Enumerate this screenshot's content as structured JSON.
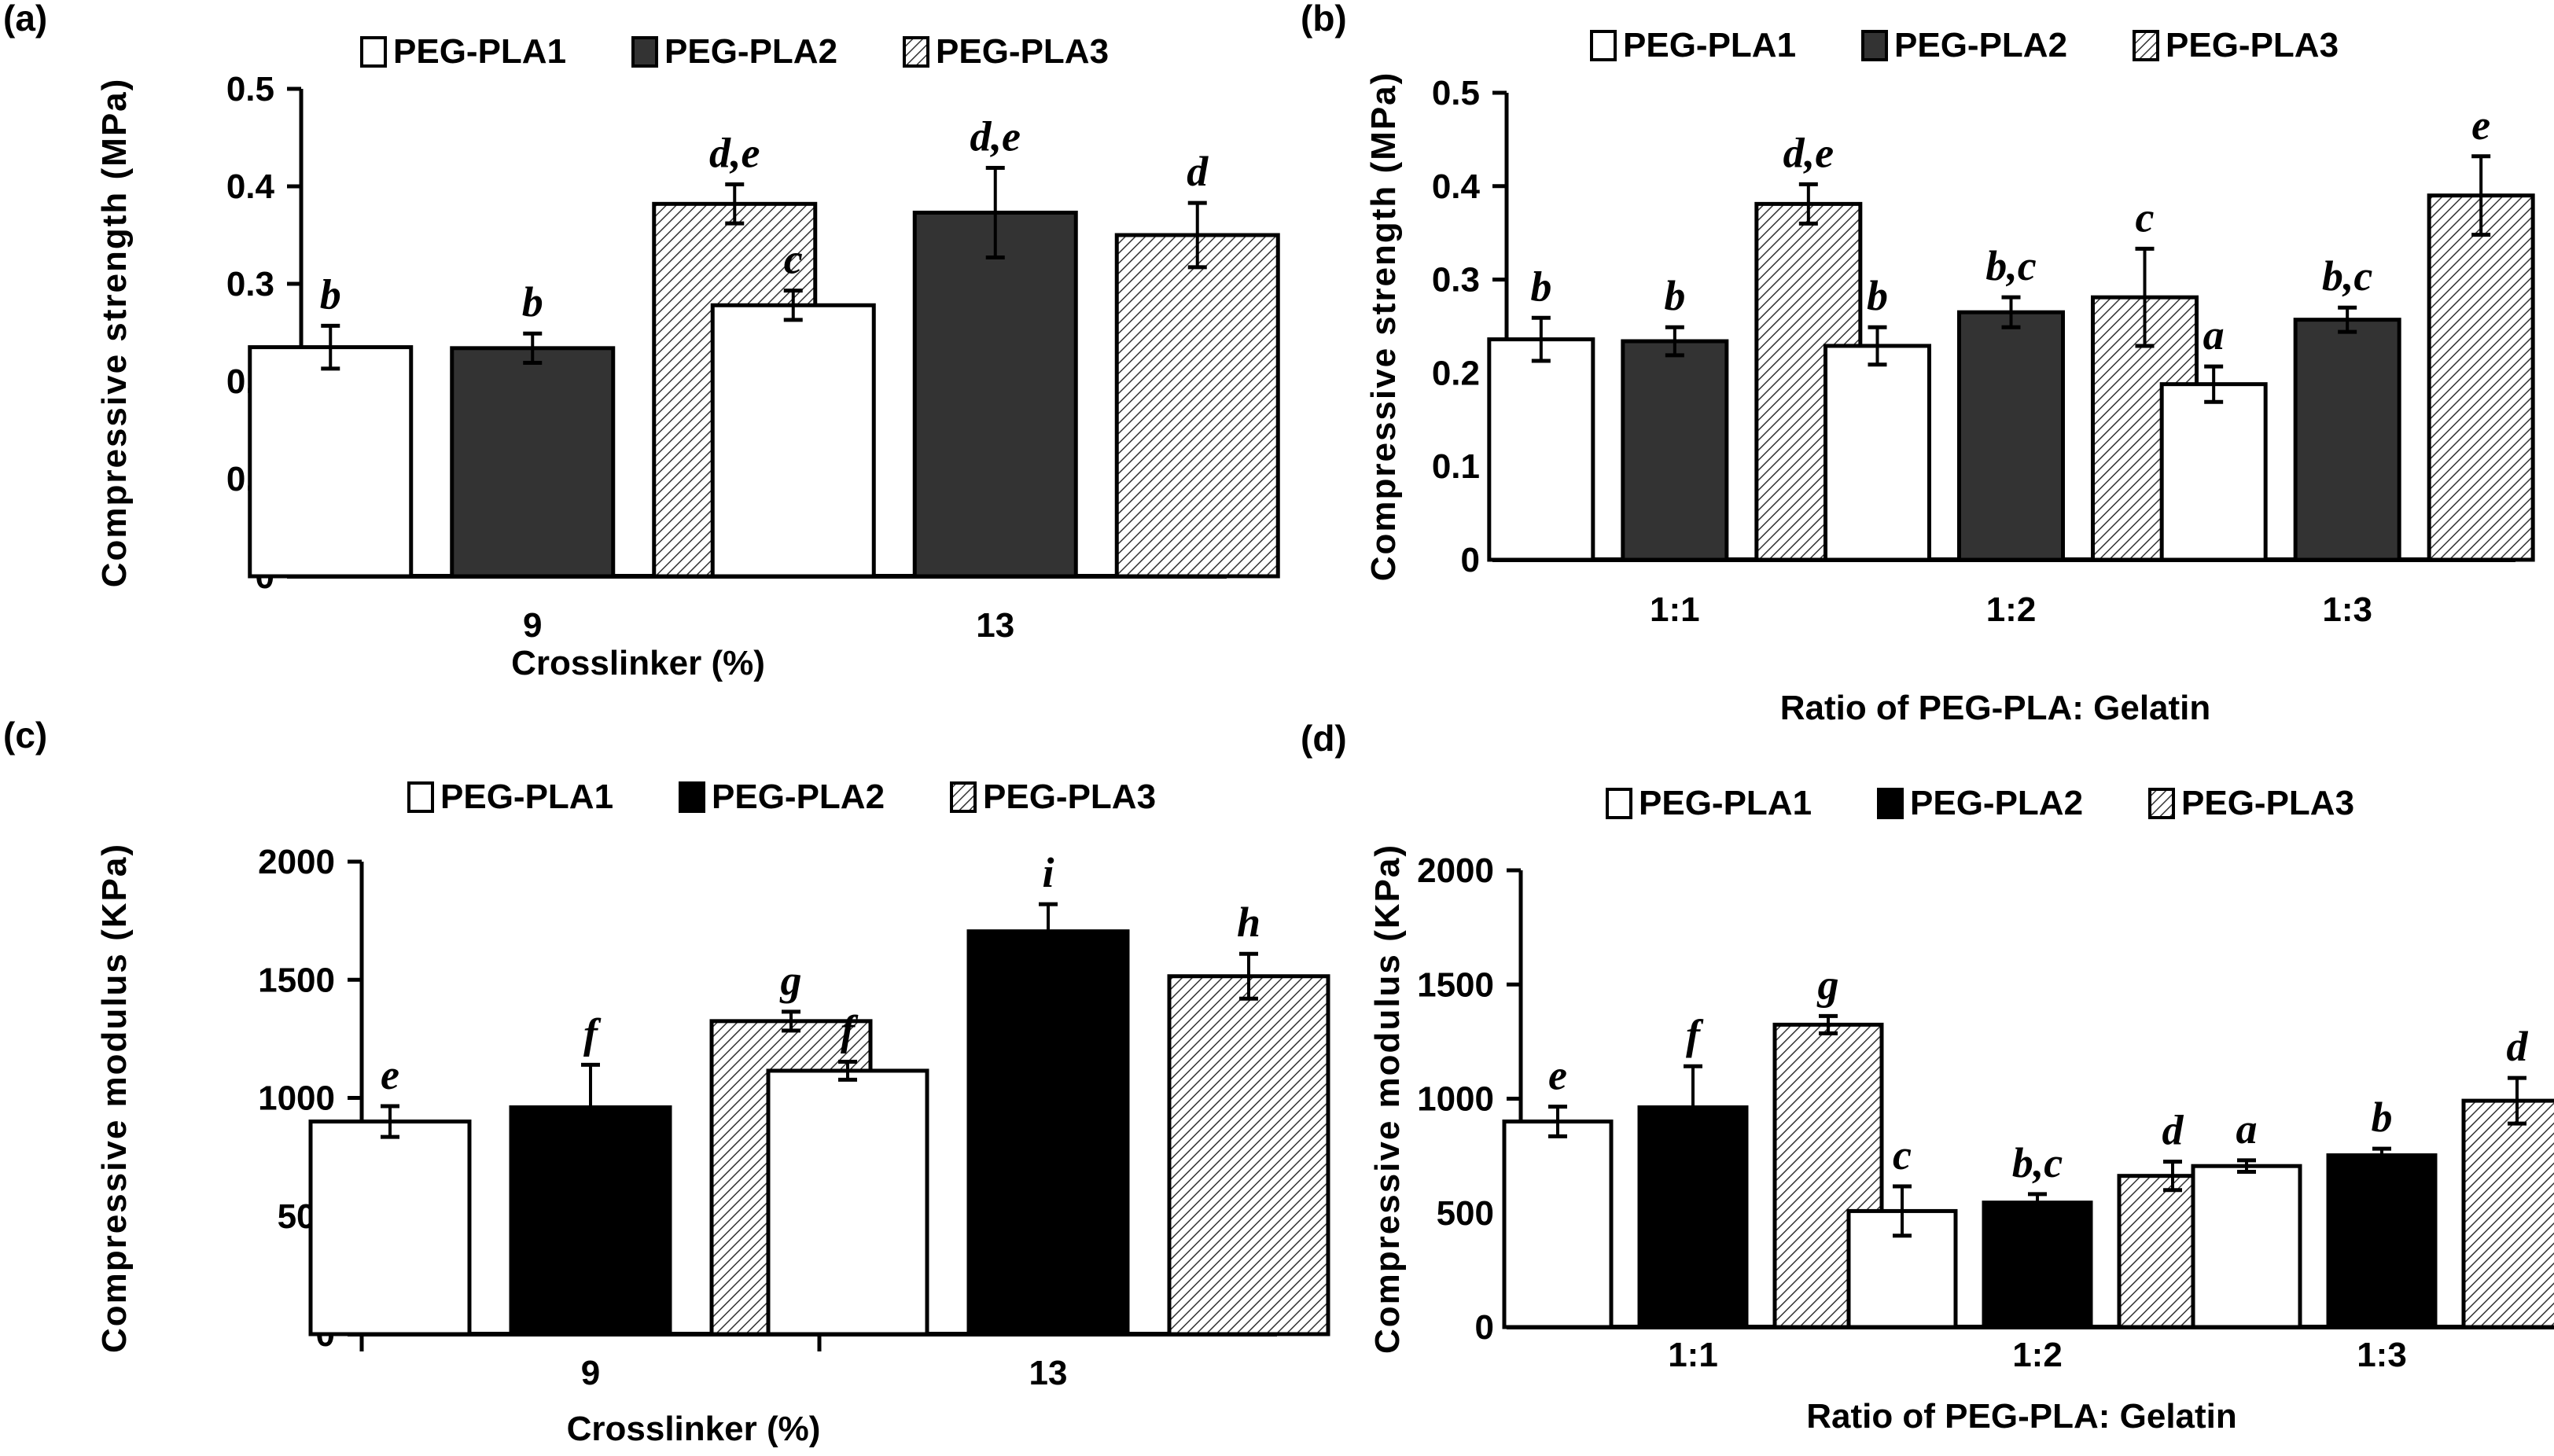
{
  "figure": {
    "panels": [
      {
        "id": "a",
        "label": "(a)"
      },
      {
        "id": "b",
        "label": "(b)"
      },
      {
        "id": "c",
        "label": "(c)"
      },
      {
        "id": "d",
        "label": "(d)"
      }
    ]
  },
  "chart_data": [
    {
      "panel": "(a)",
      "type": "bar",
      "title": "",
      "xlabel": "Crosslinker (%)",
      "ylabel": "Compressive strength (MPa)",
      "ylim": [
        0,
        0.5
      ],
      "yticks": [
        "0",
        "0.1",
        "0.2",
        "0.3",
        "0.4",
        "0.5"
      ],
      "ytick_values": [
        0,
        0.1,
        0.2,
        0.3,
        0.4,
        0.5
      ],
      "categories": [
        "9",
        "13"
      ],
      "legend_position": "top",
      "grid": false,
      "series": [
        {
          "name": "PEG-PLA1",
          "fill": "#ffffff",
          "pattern": "none",
          "values": [
            0.235,
            0.278
          ],
          "error": [
            0.022,
            0.015
          ],
          "letters": [
            "b",
            "c"
          ]
        },
        {
          "name": "PEG-PLA2",
          "fill": "#333333",
          "pattern": "none",
          "values": [
            0.234,
            0.373
          ],
          "error": [
            0.015,
            0.046
          ],
          "letters": [
            "b",
            "d,e"
          ]
        },
        {
          "name": "PEG-PLA3",
          "fill": "#ffffff",
          "pattern": "diagonal-hatch",
          "values": [
            0.382,
            0.35
          ],
          "error": [
            0.02,
            0.033
          ],
          "letters": [
            "d,e",
            "d"
          ]
        }
      ]
    },
    {
      "panel": "(b)",
      "type": "bar",
      "title": "",
      "xlabel": "Ratio of PEG-PLA: Gelatin",
      "ylabel": "Compressive strength (MPa)",
      "ylim": [
        0,
        0.5
      ],
      "yticks": [
        "0",
        "0.1",
        "0.2",
        "0.3",
        "0.4",
        "0.5"
      ],
      "ytick_values": [
        0,
        0.1,
        0.2,
        0.3,
        0.4,
        0.5
      ],
      "categories": [
        "1:1",
        "1:2",
        "1:3"
      ],
      "legend_position": "top",
      "grid": false,
      "series": [
        {
          "name": "PEG-PLA1",
          "fill": "#ffffff",
          "pattern": "none",
          "values": [
            0.236,
            0.229,
            0.188
          ],
          "error": [
            0.023,
            0.02,
            0.019
          ],
          "letters": [
            "b",
            "b",
            "a"
          ]
        },
        {
          "name": "PEG-PLA2",
          "fill": "#333333",
          "pattern": "none",
          "values": [
            0.234,
            0.265,
            0.257
          ],
          "error": [
            0.015,
            0.016,
            0.013
          ],
          "letters": [
            "b",
            "b,c",
            "b,c"
          ]
        },
        {
          "name": "PEG-PLA3",
          "fill": "#ffffff",
          "pattern": "diagonal-hatch",
          "values": [
            0.381,
            0.281,
            0.39
          ],
          "error": [
            0.021,
            0.052,
            0.042
          ],
          "letters": [
            "d,e",
            "c",
            "e"
          ]
        }
      ]
    },
    {
      "panel": "(c)",
      "type": "bar",
      "title": "",
      "xlabel": "Crosslinker (%)",
      "ylabel": "Compressive modulus (KPa)",
      "ylim": [
        0,
        2000
      ],
      "yticks": [
        "0",
        "500",
        "1000",
        "1500",
        "2000"
      ],
      "ytick_values": [
        0,
        500,
        1000,
        1500,
        2000
      ],
      "categories": [
        "9",
        "13"
      ],
      "legend_position": "top",
      "grid": false,
      "series": [
        {
          "name": "PEG-PLA1",
          "fill": "#ffffff",
          "pattern": "none",
          "values": [
            900,
            1115
          ],
          "error": [
            65,
            38
          ],
          "letters": [
            "e",
            "f"
          ]
        },
        {
          "name": "PEG-PLA2",
          "fill": "#000000",
          "pattern": "none",
          "values": [
            960,
            1705
          ],
          "error": [
            180,
            115
          ],
          "letters": [
            "f",
            "i"
          ]
        },
        {
          "name": "PEG-PLA3",
          "fill": "#ffffff",
          "pattern": "diagonal-hatch",
          "values": [
            1325,
            1515
          ],
          "error": [
            40,
            95
          ],
          "letters": [
            "g",
            "h"
          ]
        }
      ]
    },
    {
      "panel": "(d)",
      "type": "bar",
      "title": "",
      "xlabel": "Ratio of PEG-PLA: Gelatin",
      "ylabel": "Compressive modulus (KPa)",
      "ylim": [
        0,
        2000
      ],
      "yticks": [
        "0",
        "500",
        "1000",
        "1500",
        "2000"
      ],
      "ytick_values": [
        0,
        500,
        1000,
        1500,
        2000
      ],
      "categories": [
        "1:1",
        "1:2",
        "1:3"
      ],
      "legend_position": "top",
      "grid": false,
      "series": [
        {
          "name": "PEG-PLA1",
          "fill": "#ffffff",
          "pattern": "none",
          "values": [
            900,
            508,
            705
          ],
          "error": [
            65,
            108,
            25
          ],
          "letters": [
            "e",
            "c",
            "a"
          ]
        },
        {
          "name": "PEG-PLA2",
          "fill": "#000000",
          "pattern": "none",
          "values": [
            962,
            545,
            752
          ],
          "error": [
            180,
            37,
            29
          ],
          "letters": [
            "f",
            "b,c",
            "b"
          ]
        },
        {
          "name": "PEG-PLA3",
          "fill": "#ffffff",
          "pattern": "diagonal-hatch",
          "values": [
            1324,
            662,
            991
          ],
          "error": [
            38,
            62,
            100
          ],
          "letters": [
            "g",
            "d",
            "d"
          ]
        }
      ]
    }
  ]
}
